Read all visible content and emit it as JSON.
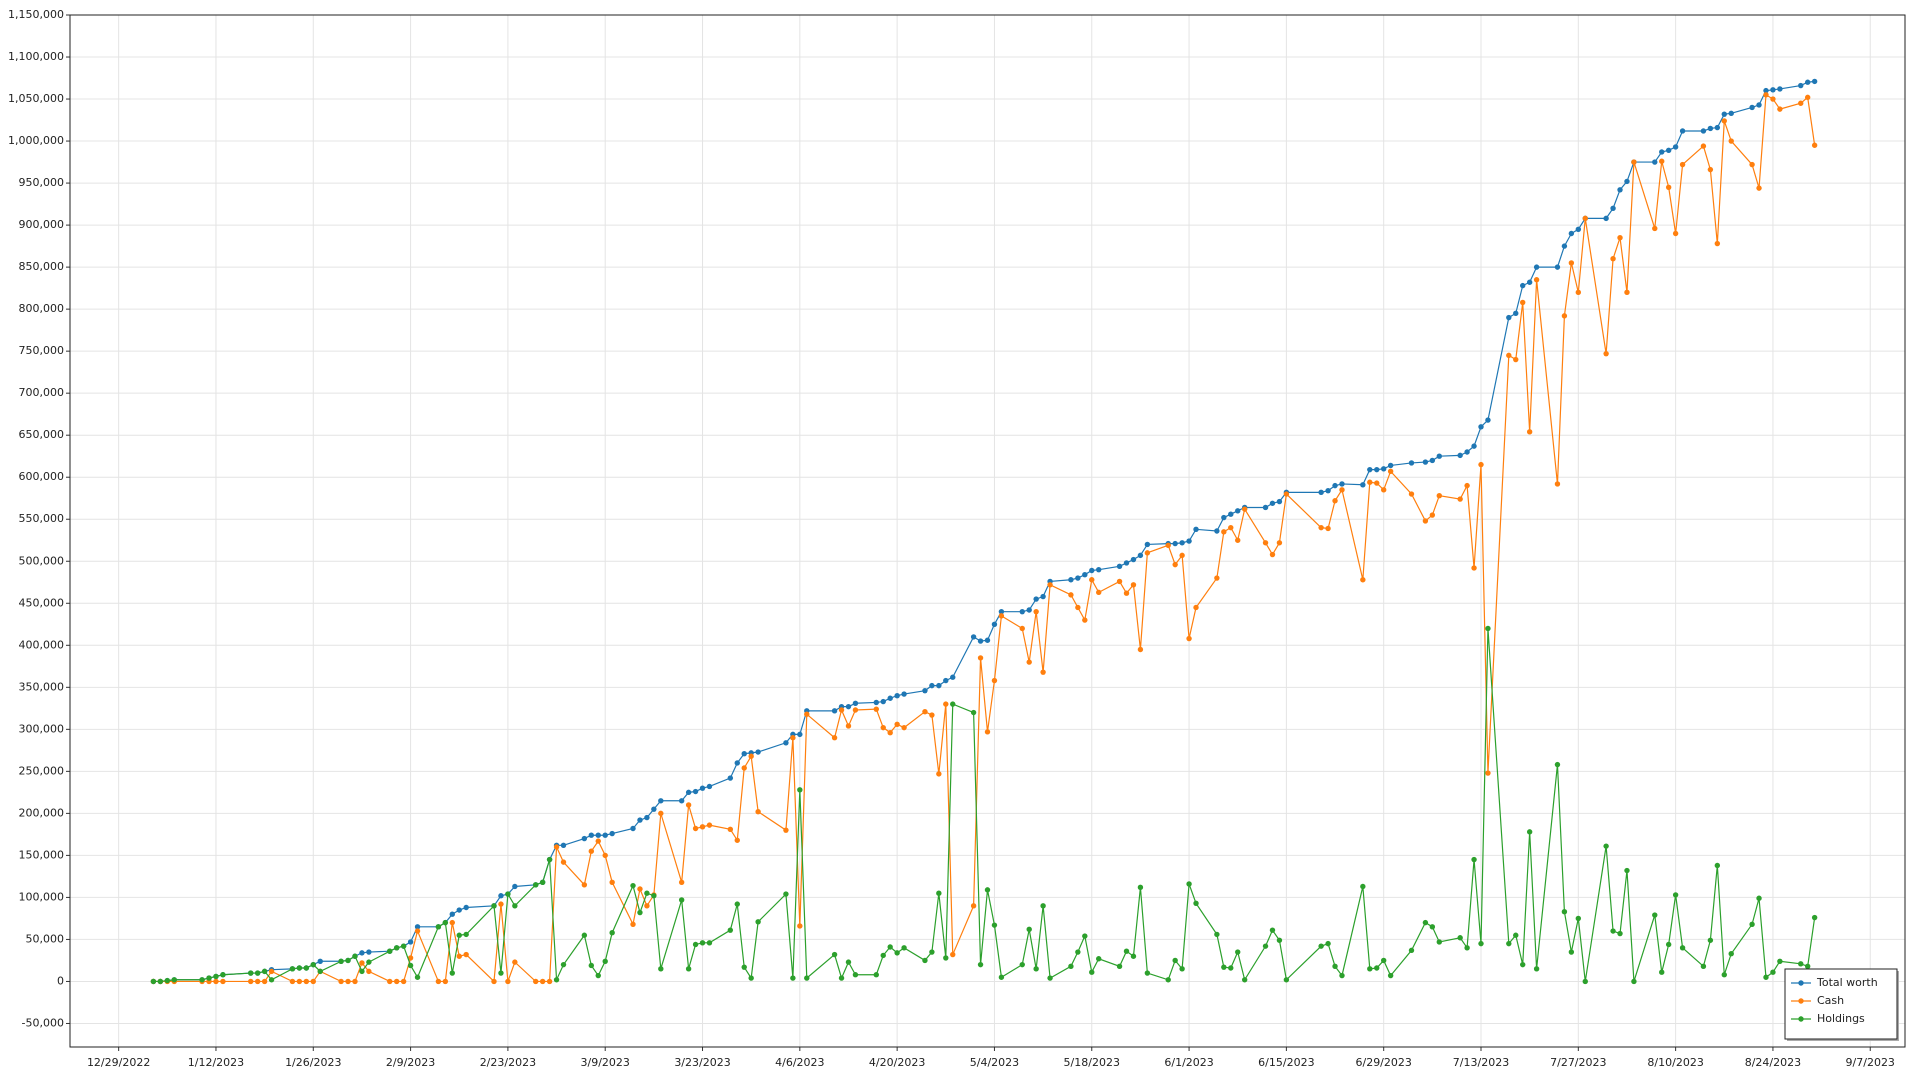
{
  "chart_data": {
    "type": "line",
    "x": [
      "1/3/2023",
      "1/4/2023",
      "1/5/2023",
      "1/6/2023",
      "1/10/2023",
      "1/11/2023",
      "1/12/2023",
      "1/13/2023",
      "1/17/2023",
      "1/18/2023",
      "1/19/2023",
      "1/20/2023",
      "1/23/2023",
      "1/24/2023",
      "1/25/2023",
      "1/26/2023",
      "1/27/2023",
      "1/30/2023",
      "1/31/2023",
      "2/1/2023",
      "2/2/2023",
      "2/3/2023",
      "2/6/2023",
      "2/7/2023",
      "2/8/2023",
      "2/9/2023",
      "2/10/2023",
      "2/13/2023",
      "2/14/2023",
      "2/15/2023",
      "2/16/2023",
      "2/17/2023",
      "2/21/2023",
      "2/22/2023",
      "2/23/2023",
      "2/24/2023",
      "2/27/2023",
      "2/28/2023",
      "3/1/2023",
      "3/2/2023",
      "3/3/2023",
      "3/6/2023",
      "3/7/2023",
      "3/8/2023",
      "3/9/2023",
      "3/10/2023",
      "3/13/2023",
      "3/14/2023",
      "3/15/2023",
      "3/16/2023",
      "3/17/2023",
      "3/20/2023",
      "3/21/2023",
      "3/22/2023",
      "3/23/2023",
      "3/24/2023",
      "3/27/2023",
      "3/28/2023",
      "3/29/2023",
      "3/30/2023",
      "3/31/2023",
      "4/4/2023",
      "4/5/2023",
      "4/6/2023",
      "4/7/2023",
      "4/11/2023",
      "4/12/2023",
      "4/13/2023",
      "4/14/2023",
      "4/17/2023",
      "4/18/2023",
      "4/19/2023",
      "4/20/2023",
      "4/21/2023",
      "4/24/2023",
      "4/25/2023",
      "4/26/2023",
      "4/27/2023",
      "4/28/2023",
      "5/1/2023",
      "5/2/2023",
      "5/3/2023",
      "5/4/2023",
      "5/5/2023",
      "5/8/2023",
      "5/9/2023",
      "5/10/2023",
      "5/11/2023",
      "5/12/2023",
      "5/15/2023",
      "5/16/2023",
      "5/17/2023",
      "5/18/2023",
      "5/19/2023",
      "5/22/2023",
      "5/23/2023",
      "5/24/2023",
      "5/25/2023",
      "5/26/2023",
      "5/29/2023",
      "5/30/2023",
      "5/31/2023",
      "6/1/2023",
      "6/2/2023",
      "6/5/2023",
      "6/6/2023",
      "6/7/2023",
      "6/8/2023",
      "6/9/2023",
      "6/12/2023",
      "6/13/2023",
      "6/14/2023",
      "6/15/2023",
      "6/20/2023",
      "6/21/2023",
      "6/22/2023",
      "6/23/2023",
      "6/26/2023",
      "6/27/2023",
      "6/28/2023",
      "6/29/2023",
      "6/30/2023",
      "7/3/2023",
      "7/5/2023",
      "7/6/2023",
      "7/7/2023",
      "7/10/2023",
      "7/11/2023",
      "7/12/2023",
      "7/13/2023",
      "7/14/2023",
      "7/17/2023",
      "7/18/2023",
      "7/19/2023",
      "7/20/2023",
      "7/21/2023",
      "7/24/2023",
      "7/25/2023",
      "7/26/2023",
      "7/27/2023",
      "7/28/2023",
      "7/31/2023",
      "8/1/2023",
      "8/2/2023",
      "8/3/2023",
      "8/4/2023",
      "8/7/2023",
      "8/8/2023",
      "8/9/2023",
      "8/10/2023",
      "8/11/2023",
      "8/14/2023",
      "8/15/2023",
      "8/16/2023",
      "8/17/2023",
      "8/18/2023",
      "8/21/2023",
      "8/22/2023",
      "8/23/2023",
      "8/24/2023",
      "8/25/2023",
      "8/28/2023",
      "8/29/2023",
      "8/30/2023"
    ],
    "series": [
      {
        "name": "Total worth",
        "color": "#1f77b4",
        "values": [
          0,
          0,
          1000,
          2000,
          2000,
          4000,
          6000,
          8000,
          10000,
          10000,
          12000,
          14000,
          15000,
          16000,
          16000,
          20000,
          24000,
          24000,
          25000,
          30000,
          34000,
          35000,
          36000,
          40000,
          42000,
          47000,
          65000,
          65000,
          70000,
          80000,
          85000,
          88000,
          90000,
          102000,
          104000,
          113000,
          115000,
          118000,
          145000,
          162000,
          162000,
          170000,
          174000,
          174000,
          174000,
          176000,
          182000,
          192000,
          195000,
          205000,
          215000,
          215000,
          225000,
          226000,
          230000,
          232000,
          242000,
          260000,
          271000,
          272000,
          273000,
          284000,
          294000,
          294000,
          322000,
          322000,
          327000,
          327000,
          331000,
          332000,
          333000,
          337000,
          340000,
          342000,
          346000,
          352000,
          352000,
          358000,
          362000,
          410000,
          405000,
          406000,
          425000,
          440000,
          440000,
          442000,
          455000,
          458000,
          476000,
          478000,
          480000,
          484000,
          489000,
          490000,
          494000,
          498000,
          502000,
          507000,
          520000,
          521000,
          521000,
          522000,
          524000,
          538000,
          536000,
          552000,
          556000,
          560000,
          564000,
          564000,
          569000,
          571000,
          582000,
          582000,
          584000,
          590000,
          592000,
          591000,
          609000,
          609000,
          610000,
          614000,
          617000,
          618000,
          620000,
          625000,
          626000,
          630000,
          637000,
          660000,
          668000,
          790000,
          795000,
          828000,
          832000,
          850000,
          850000,
          875000,
          890000,
          895000,
          908000,
          908000,
          920000,
          942000,
          952000,
          975000,
          975000,
          987000,
          989000,
          993000,
          1012000,
          1012000,
          1015000,
          1016000,
          1032000,
          1033000,
          1040000,
          1043000,
          1060000,
          1061000,
          1062000,
          1066000,
          1070000,
          1071000
        ]
      },
      {
        "name": "Cash",
        "color": "#ff7f0e",
        "values": [
          0,
          0,
          0,
          0,
          0,
          0,
          0,
          0,
          0,
          0,
          0,
          12000,
          0,
          0,
          0,
          0,
          12000,
          0,
          0,
          0,
          22000,
          12000,
          0,
          0,
          0,
          28000,
          60000,
          0,
          0,
          70000,
          30000,
          32000,
          0,
          92000,
          0,
          23000,
          0,
          0,
          0,
          160000,
          142000,
          115000,
          155000,
          167000,
          150000,
          118000,
          68000,
          110000,
          90000,
          103000,
          200000,
          118000,
          210000,
          182000,
          184000,
          186000,
          181000,
          168000,
          254000,
          268000,
          202000,
          180000,
          290000,
          66000,
          318000,
          290000,
          323000,
          304000,
          323000,
          324000,
          302000,
          296000,
          306000,
          302000,
          321000,
          317000,
          247000,
          330000,
          32000,
          90000,
          385000,
          297000,
          358000,
          435000,
          420000,
          380000,
          440000,
          368000,
          472000,
          460000,
          445000,
          430000,
          478000,
          463000,
          476000,
          462000,
          472000,
          395000,
          510000,
          519000,
          496000,
          507000,
          408000,
          445000,
          480000,
          535000,
          540000,
          525000,
          562000,
          522000,
          508000,
          522000,
          580000,
          540000,
          539000,
          572000,
          585000,
          478000,
          594000,
          593000,
          585000,
          607000,
          580000,
          548000,
          555000,
          578000,
          574000,
          590000,
          492000,
          615000,
          248000,
          745000,
          740000,
          808000,
          654000,
          835000,
          592000,
          792000,
          855000,
          820000,
          908000,
          747000,
          860000,
          885000,
          820000,
          975000,
          896000,
          976000,
          945000,
          890000,
          972000,
          994000,
          966000,
          878000,
          1024000,
          1000000,
          972000,
          944000,
          1055000,
          1050000,
          1038000,
          1045000,
          1052000,
          995000
        ]
      },
      {
        "name": "Holdings",
        "color": "#2ca02c",
        "values": [
          0,
          0,
          1000,
          2000,
          2000,
          4000,
          6000,
          8000,
          10000,
          10000,
          12000,
          2000,
          15000,
          16000,
          16000,
          20000,
          12000,
          24000,
          25000,
          30000,
          12000,
          23000,
          36000,
          40000,
          42000,
          19000,
          5000,
          65000,
          70000,
          10000,
          55000,
          56000,
          90000,
          10000,
          104000,
          90000,
          115000,
          118000,
          145000,
          2000,
          20000,
          55000,
          19000,
          7000,
          24000,
          58000,
          114000,
          82000,
          105000,
          102000,
          15000,
          97000,
          15000,
          44000,
          46000,
          46000,
          61000,
          92000,
          17000,
          4000,
          71000,
          104000,
          4000,
          228000,
          4000,
          32000,
          4000,
          23000,
          8000,
          8000,
          31000,
          41000,
          34000,
          40000,
          25000,
          35000,
          105000,
          28000,
          330000,
          320000,
          20000,
          109000,
          67000,
          5000,
          20000,
          62000,
          15000,
          90000,
          4000,
          18000,
          35000,
          54000,
          11000,
          27000,
          18000,
          36000,
          30000,
          112000,
          10000,
          2000,
          25000,
          15000,
          116000,
          93000,
          56000,
          17000,
          16000,
          35000,
          2000,
          42000,
          61000,
          49000,
          2000,
          42000,
          45000,
          18000,
          7000,
          113000,
          15000,
          16000,
          25000,
          7000,
          37000,
          70000,
          65000,
          47000,
          52000,
          40000,
          145000,
          45000,
          420000,
          45000,
          55000,
          20000,
          178000,
          15000,
          258000,
          83000,
          35000,
          75000,
          0,
          161000,
          60000,
          57000,
          132000,
          0,
          79000,
          11000,
          44000,
          103000,
          40000,
          18000,
          49000,
          138000,
          8000,
          33000,
          68000,
          99000,
          5000,
          11000,
          24000,
          21000,
          18000,
          76000
        ]
      }
    ],
    "xlim": [
      "12/22/2022",
      "9/12/2023"
    ],
    "xticks": [
      "12/29/2022",
      "1/12/2023",
      "1/26/2023",
      "2/9/2023",
      "2/23/2023",
      "3/9/2023",
      "3/23/2023",
      "4/6/2023",
      "4/20/2023",
      "5/4/2023",
      "5/18/2023",
      "6/1/2023",
      "6/15/2023",
      "6/29/2023",
      "7/13/2023",
      "7/27/2023",
      "8/10/2023",
      "8/24/2023",
      "9/7/2023"
    ],
    "ylim": [
      -78000,
      1150000
    ],
    "yticks": [
      {
        "value": -50000,
        "label": "-50,000"
      },
      0,
      {
        "value": 50000,
        "label": "50,000"
      },
      {
        "value": 100000,
        "label": "100,000"
      },
      {
        "value": 150000,
        "label": "150,000"
      },
      {
        "value": 200000,
        "label": "200,000"
      },
      {
        "value": 250000,
        "label": "250,000"
      },
      {
        "value": 300000,
        "label": "300,000"
      },
      {
        "value": 350000,
        "label": "350,000"
      },
      {
        "value": 400000,
        "label": "400,000"
      },
      {
        "value": 450000,
        "label": "450,000"
      },
      {
        "value": 500000,
        "label": "500,000"
      },
      {
        "value": 550000,
        "label": "550,000"
      },
      {
        "value": 600000,
        "label": "600,000"
      },
      {
        "value": 650000,
        "label": "650,000"
      },
      {
        "value": 700000,
        "label": "700,000"
      },
      {
        "value": 750000,
        "label": "750,000"
      },
      {
        "value": 800000,
        "label": "800,000"
      },
      {
        "value": 850000,
        "label": "850,000"
      },
      {
        "value": 900000,
        "label": "900,000"
      },
      {
        "value": 950000,
        "label": "950,000"
      },
      {
        "value": 1000000,
        "label": "1,000,000"
      },
      {
        "value": 1050000,
        "label": "1,050,000"
      },
      {
        "value": 1100000,
        "label": "1,100,000"
      },
      {
        "value": 1150000,
        "label": "1,150,000"
      }
    ],
    "grid": true,
    "legend": "lower right"
  }
}
